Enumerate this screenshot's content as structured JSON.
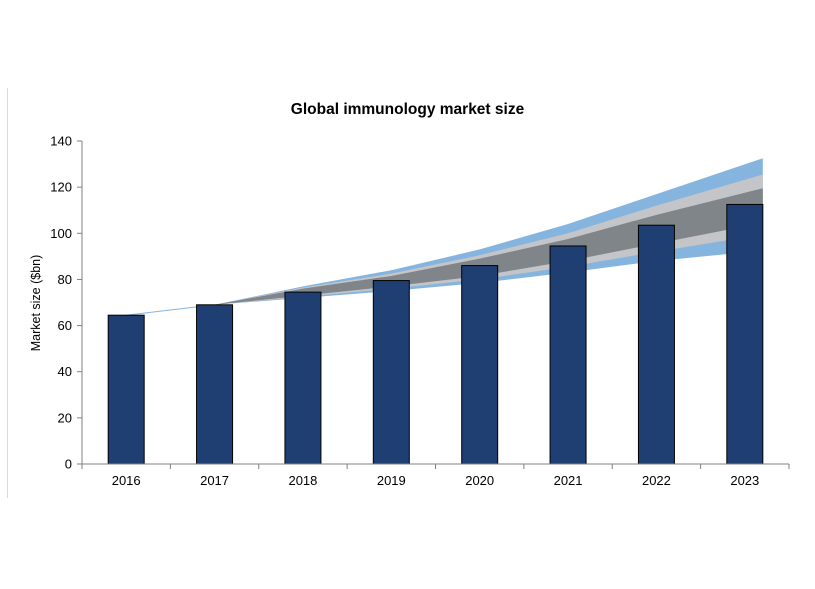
{
  "chart_data": {
    "type": "bar",
    "title": "Global immunology market size",
    "xlabel": "",
    "ylabel": "Market size ($bn)",
    "ylim": [
      0,
      140
    ],
    "yticks": [
      0,
      20,
      40,
      60,
      80,
      100,
      120,
      140
    ],
    "grid": false,
    "legend": "none",
    "categories": [
      "2016",
      "2017",
      "2018",
      "2019",
      "2020",
      "2021",
      "2022",
      "2023"
    ],
    "series": [
      {
        "values": [
          64.5,
          69,
          74.5,
          79.5,
          86,
          94.5,
          103.5,
          112.5
        ]
      }
    ],
    "forecast_bands": [
      {
        "lower": [
          64.5,
          69,
          72,
          75,
          78.5,
          83,
          88,
          92.5
        ],
        "upper": [
          64.5,
          69,
          77,
          84,
          93,
          104,
          117,
          132.5
        ]
      },
      {
        "lower": [
          64.5,
          69,
          72.5,
          76,
          80,
          85.5,
          92,
          99.5
        ],
        "upper": [
          64.5,
          69,
          76.5,
          82.5,
          90.5,
          100,
          112,
          125.5
        ]
      },
      {
        "lower": [
          64.5,
          69,
          73,
          77,
          81.5,
          88,
          95.5,
          104.5
        ],
        "upper": [
          64.5,
          69,
          76,
          81.5,
          89,
          97.5,
          108,
          119.5
        ]
      }
    ],
    "colors": {
      "bar_fill": "#1f3f73",
      "bar_stroke": "#000000",
      "band_outer": "#85b5de",
      "band_middle": "#c3c5c8",
      "band_inner": "#808589",
      "axis": "#808080"
    }
  }
}
